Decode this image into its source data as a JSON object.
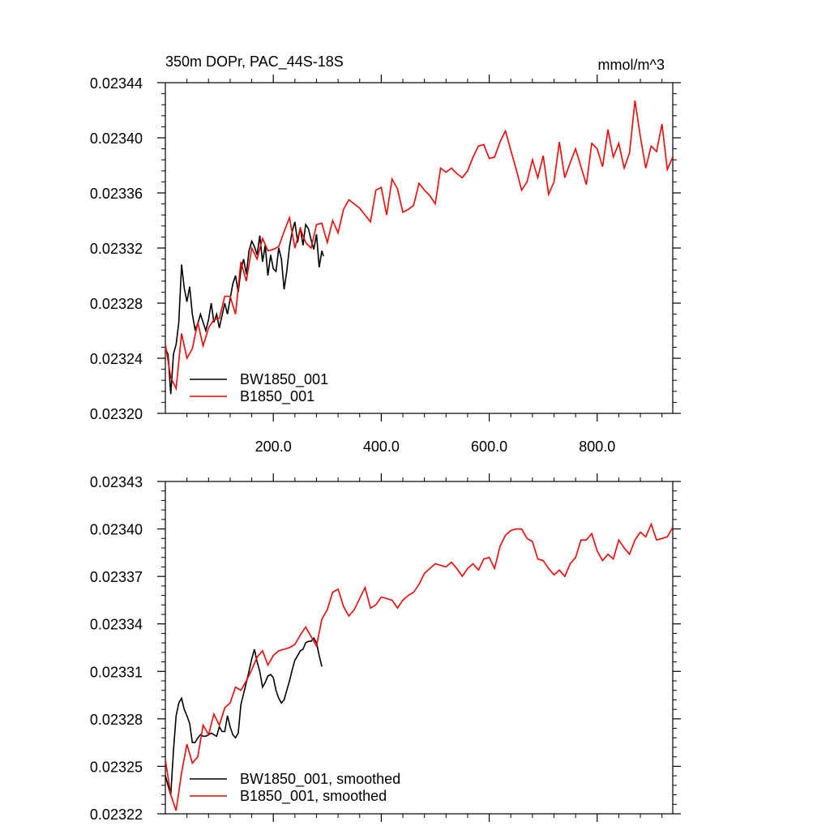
{
  "chart_data": [
    {
      "type": "line",
      "title": "350m DOPr, PAC_44S-18S",
      "units": "mmol/m^3",
      "xlim": [
        0,
        940
      ],
      "ylim": [
        0.0232,
        0.02344
      ],
      "x_ticks": [
        200,
        400,
        600,
        800
      ],
      "x_tick_labels": [
        "200.0",
        "400.0",
        "600.0",
        "800.0"
      ],
      "y_ticks": [
        0.0232,
        0.02324,
        0.02328,
        0.02332,
        0.02336,
        0.0234,
        0.02344
      ],
      "y_tick_labels": [
        "0.02320",
        "0.02324",
        "0.02328",
        "0.02332",
        "0.02336",
        "0.02340",
        "0.02344"
      ],
      "legend": [
        "BW1850_001",
        "B1850_001"
      ],
      "legend_position": "bottom-left",
      "series": [
        {
          "name": "BW1850_001",
          "color": "#000000",
          "x": [
            0,
            5,
            10,
            15,
            20,
            25,
            30,
            35,
            40,
            45,
            50,
            55,
            60,
            65,
            70,
            75,
            80,
            85,
            90,
            95,
            100,
            105,
            110,
            115,
            120,
            125,
            130,
            135,
            140,
            145,
            150,
            155,
            160,
            165,
            170,
            175,
            180,
            185,
            190,
            195,
            200,
            205,
            210,
            215,
            220,
            225,
            230,
            235,
            240,
            245,
            250,
            255,
            260,
            265,
            270,
            275,
            280,
            285,
            290,
            293
          ],
          "values": [
            0.023247,
            0.023243,
            0.023214,
            0.023243,
            0.02325,
            0.023266,
            0.023308,
            0.023291,
            0.023281,
            0.023292,
            0.023272,
            0.023261,
            0.023265,
            0.023272,
            0.023266,
            0.02326,
            0.023268,
            0.02328,
            0.023266,
            0.023272,
            0.023262,
            0.023271,
            0.02328,
            0.023272,
            0.023283,
            0.023294,
            0.0233,
            0.023288,
            0.023304,
            0.023312,
            0.023301,
            0.023318,
            0.023325,
            0.023321,
            0.023315,
            0.023329,
            0.02331,
            0.023322,
            0.0233,
            0.023315,
            0.023305,
            0.023303,
            0.02332,
            0.023312,
            0.02329,
            0.023303,
            0.023321,
            0.023332,
            0.023339,
            0.023324,
            0.023335,
            0.023322,
            0.023337,
            0.023334,
            0.023326,
            0.023319,
            0.02333,
            0.023306,
            0.023318,
            0.023314
          ]
        },
        {
          "name": "B1850_001",
          "color": "#ff0000",
          "x": [
            0,
            10,
            20,
            30,
            40,
            50,
            60,
            70,
            80,
            90,
            100,
            110,
            120,
            130,
            140,
            150,
            160,
            170,
            180,
            190,
            200,
            210,
            220,
            230,
            240,
            250,
            260,
            270,
            280,
            290,
            300,
            310,
            320,
            330,
            340,
            350,
            360,
            370,
            380,
            390,
            400,
            410,
            420,
            430,
            440,
            450,
            460,
            470,
            480,
            490,
            500,
            510,
            520,
            530,
            540,
            550,
            560,
            570,
            580,
            590,
            600,
            610,
            620,
            630,
            640,
            650,
            660,
            670,
            680,
            690,
            700,
            710,
            720,
            730,
            740,
            750,
            760,
            770,
            780,
            790,
            800,
            810,
            820,
            830,
            840,
            850,
            860,
            870,
            880,
            890,
            900,
            910,
            920,
            930,
            940
          ],
          "values": [
            0.02325,
            0.023226,
            0.023218,
            0.023258,
            0.02324,
            0.023247,
            0.023266,
            0.023249,
            0.023262,
            0.023268,
            0.023269,
            0.023285,
            0.023285,
            0.023272,
            0.02331,
            0.023296,
            0.02332,
            0.023312,
            0.023327,
            0.023318,
            0.023319,
            0.023321,
            0.023332,
            0.023342,
            0.02332,
            0.023334,
            0.023324,
            0.02332,
            0.023337,
            0.023338,
            0.023324,
            0.02334,
            0.023331,
            0.023348,
            0.023355,
            0.023352,
            0.023349,
            0.023344,
            0.023339,
            0.023362,
            0.023364,
            0.023344,
            0.02337,
            0.023363,
            0.023346,
            0.023348,
            0.023351,
            0.023367,
            0.023362,
            0.023358,
            0.023352,
            0.023378,
            0.023375,
            0.023378,
            0.023374,
            0.023371,
            0.023376,
            0.023386,
            0.023394,
            0.023395,
            0.023385,
            0.023386,
            0.023397,
            0.023405,
            0.023391,
            0.023377,
            0.023362,
            0.023368,
            0.023384,
            0.023371,
            0.023387,
            0.023359,
            0.023368,
            0.023397,
            0.023371,
            0.023382,
            0.023392,
            0.023379,
            0.023366,
            0.023396,
            0.023392,
            0.023379,
            0.023406,
            0.023386,
            0.023396,
            0.023378,
            0.023389,
            0.023427,
            0.023401,
            0.023378,
            0.023394,
            0.02339,
            0.02341,
            0.023377,
            0.023386
          ]
        }
      ]
    },
    {
      "type": "line",
      "title": "",
      "xlim": [
        0,
        940
      ],
      "ylim": [
        0.02322,
        0.02343
      ],
      "y_ticks": [
        0.02322,
        0.02325,
        0.02328,
        0.02331,
        0.02334,
        0.02337,
        0.0234,
        0.02343
      ],
      "y_tick_labels": [
        "0.02322",
        "0.02325",
        "0.02328",
        "0.02331",
        "0.02334",
        "0.02337",
        "0.02340",
        "0.02343"
      ],
      "legend": [
        "BW1850_001, smoothed",
        "B1850_001, smoothed"
      ],
      "legend_position": "bottom-left",
      "series": [
        {
          "name": "BW1850_001, smoothed",
          "color": "#000000",
          "x": [
            0,
            5,
            10,
            15,
            20,
            25,
            30,
            35,
            40,
            45,
            50,
            55,
            60,
            65,
            70,
            75,
            80,
            85,
            90,
            95,
            100,
            105,
            110,
            115,
            120,
            125,
            130,
            135,
            140,
            145,
            150,
            155,
            160,
            165,
            170,
            175,
            180,
            185,
            190,
            195,
            200,
            205,
            210,
            215,
            220,
            225,
            230,
            235,
            240,
            245,
            250,
            255,
            260,
            265,
            270,
            275,
            280,
            285,
            290
          ],
          "values": [
            0.023244,
            0.023238,
            0.023232,
            0.02326,
            0.023282,
            0.02329,
            0.023293,
            0.023286,
            0.023282,
            0.023277,
            0.023265,
            0.023265,
            0.023268,
            0.02327,
            0.023269,
            0.023269,
            0.02327,
            0.023271,
            0.02327,
            0.023269,
            0.023275,
            0.023272,
            0.023272,
            0.023282,
            0.023275,
            0.02327,
            0.023268,
            0.023271,
            0.023289,
            0.023296,
            0.023303,
            0.02331,
            0.023318,
            0.023324,
            0.023316,
            0.02331,
            0.0233,
            0.023303,
            0.023307,
            0.023308,
            0.023306,
            0.023298,
            0.023293,
            0.02329,
            0.023292,
            0.023298,
            0.023304,
            0.023311,
            0.023317,
            0.02332,
            0.023323,
            0.023324,
            0.023328,
            0.023329,
            0.023329,
            0.023331,
            0.023328,
            0.02332,
            0.023313
          ]
        },
        {
          "name": "B1850_001, smoothed",
          "color": "#ff0000",
          "x": [
            0,
            10,
            20,
            30,
            40,
            50,
            60,
            70,
            80,
            90,
            100,
            110,
            120,
            130,
            140,
            150,
            160,
            170,
            180,
            190,
            200,
            210,
            220,
            230,
            240,
            250,
            260,
            270,
            280,
            290,
            300,
            310,
            320,
            330,
            340,
            350,
            360,
            370,
            380,
            390,
            400,
            410,
            420,
            430,
            440,
            450,
            460,
            470,
            480,
            490,
            500,
            510,
            520,
            530,
            540,
            550,
            560,
            570,
            580,
            590,
            600,
            610,
            620,
            630,
            640,
            650,
            660,
            670,
            680,
            690,
            700,
            710,
            720,
            730,
            740,
            750,
            760,
            770,
            780,
            790,
            800,
            810,
            820,
            830,
            840,
            850,
            860,
            870,
            880,
            890,
            900,
            910,
            920,
            930,
            940
          ],
          "values": [
            0.023254,
            0.023232,
            0.023222,
            0.023246,
            0.023264,
            0.023252,
            0.023256,
            0.023276,
            0.02327,
            0.023283,
            0.023276,
            0.023287,
            0.02329,
            0.0233,
            0.023298,
            0.023304,
            0.023311,
            0.023319,
            0.023323,
            0.023314,
            0.02332,
            0.023323,
            0.023324,
            0.023325,
            0.023327,
            0.023333,
            0.023338,
            0.023332,
            0.023326,
            0.023343,
            0.023349,
            0.02336,
            0.023362,
            0.023351,
            0.023345,
            0.023349,
            0.023356,
            0.023363,
            0.02335,
            0.023352,
            0.023357,
            0.023356,
            0.023355,
            0.02335,
            0.023355,
            0.023358,
            0.02336,
            0.023365,
            0.023372,
            0.023375,
            0.023378,
            0.023377,
            0.023376,
            0.023379,
            0.023375,
            0.02337,
            0.023375,
            0.023378,
            0.023374,
            0.023381,
            0.023382,
            0.023375,
            0.023389,
            0.023396,
            0.023399,
            0.0234,
            0.0234,
            0.023394,
            0.023392,
            0.023381,
            0.02338,
            0.023375,
            0.023371,
            0.023374,
            0.02337,
            0.023378,
            0.023382,
            0.023393,
            0.023393,
            0.023397,
            0.023386,
            0.02338,
            0.023384,
            0.023381,
            0.023393,
            0.023388,
            0.023384,
            0.023393,
            0.023398,
            0.023395,
            0.023403,
            0.023393,
            0.023394,
            0.023395,
            0.023401
          ]
        }
      ]
    }
  ]
}
